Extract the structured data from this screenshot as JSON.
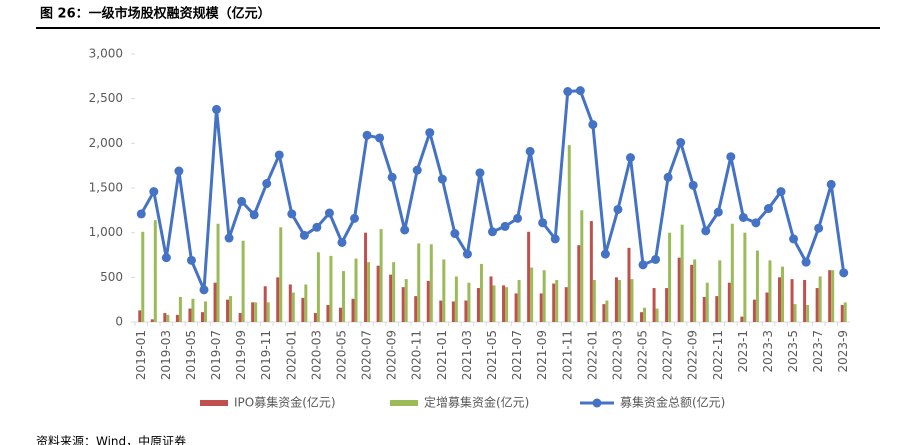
{
  "header": {
    "title": "图 26：一级市场股权融资规模（亿元）",
    "source": "资料来源：Wind，中原证券"
  },
  "chart_data": {
    "type": "bar-line",
    "categories": [
      "2019-01",
      null,
      "2019-03",
      null,
      "2019-05",
      null,
      "2019-07",
      null,
      "2019-09",
      null,
      "2019-11",
      null,
      "2020-01",
      null,
      "2020-03",
      null,
      "2020-05",
      null,
      "2020-07",
      null,
      "2020-09",
      null,
      "2020-11",
      null,
      "2021-01",
      null,
      "2021-03",
      null,
      "2021-05",
      null,
      "2021-07",
      null,
      "2021-09",
      null,
      "2021-11",
      null,
      "2022-01",
      null,
      "2022-03",
      null,
      "2022-05",
      null,
      "2022-07",
      null,
      "2022-09",
      null,
      "2022-11",
      null,
      "2023-1",
      null,
      "2023-3",
      null,
      "2023-5",
      null,
      "2023-7",
      null,
      "2023-9"
    ],
    "series": [
      {
        "name": "IPO募集资金(亿元)",
        "color": "#c0504d",
        "kind": "bar",
        "values": [
          130,
          30,
          100,
          80,
          150,
          110,
          440,
          250,
          100,
          220,
          400,
          500,
          420,
          270,
          100,
          190,
          160,
          260,
          1000,
          630,
          530,
          390,
          290,
          460,
          240,
          230,
          240,
          380,
          510,
          410,
          320,
          1010,
          320,
          430,
          390,
          860,
          1130,
          200,
          500,
          830,
          110,
          380,
          380,
          720,
          640,
          280,
          290,
          440,
          60,
          250,
          330,
          500,
          480,
          470,
          380,
          580,
          190
        ]
      },
      {
        "name": "定增募集资金(亿元)",
        "color": "#9bbb59",
        "kind": "bar",
        "values": [
          1010,
          1140,
          80,
          280,
          260,
          230,
          1100,
          290,
          910,
          220,
          220,
          1060,
          330,
          420,
          780,
          740,
          570,
          710,
          670,
          1040,
          670,
          480,
          880,
          870,
          700,
          510,
          440,
          650,
          410,
          390,
          470,
          610,
          580,
          470,
          1980,
          1250,
          470,
          240,
          470,
          480,
          160,
          150,
          1000,
          1090,
          700,
          440,
          690,
          1100,
          1000,
          800,
          690,
          620,
          200,
          190,
          510,
          580,
          220
        ]
      },
      {
        "name": "募集资金总额(亿元)",
        "color": "#4472c4",
        "kind": "line",
        "values": [
          1210,
          1460,
          720,
          1690,
          690,
          360,
          2380,
          940,
          1350,
          1200,
          1550,
          1870,
          1210,
          970,
          1060,
          1220,
          890,
          1160,
          2090,
          2060,
          1620,
          1030,
          1700,
          2120,
          1600,
          990,
          760,
          1670,
          1010,
          1070,
          1160,
          1910,
          1110,
          930,
          2580,
          2590,
          2210,
          760,
          1260,
          1840,
          640,
          700,
          1620,
          2010,
          1530,
          1020,
          1230,
          1850,
          1170,
          1110,
          1270,
          1460,
          930,
          670,
          1050,
          1540,
          550
        ]
      }
    ],
    "ylim": [
      0,
      3000
    ],
    "yticks": [
      0,
      {
        "value": 500,
        "label": "500"
      },
      {
        "value": 1000,
        "label": "1,000"
      },
      {
        "value": 1500,
        "label": "1,500"
      },
      {
        "value": 2000,
        "label": "2,000"
      },
      {
        "value": 2500,
        "label": "2,500"
      },
      {
        "value": 3000,
        "label": "3,000"
      }
    ],
    "grid": false,
    "legend": "bottom"
  }
}
